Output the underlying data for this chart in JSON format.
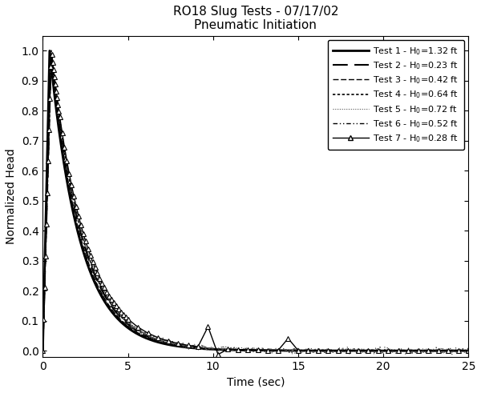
{
  "title_line1": "RO18 Slug Tests - 07/17/02",
  "title_line2": "Pneumatic Initiation",
  "xlabel": "Time (sec)",
  "ylabel": "Normalized Head",
  "xlim": [
    0,
    25
  ],
  "ylim": [
    -0.02,
    1.05
  ],
  "xticks": [
    0,
    5,
    10,
    15,
    20,
    25
  ],
  "yticks": [
    0.0,
    0.1,
    0.2,
    0.3,
    0.4,
    0.5,
    0.6,
    0.7,
    0.8,
    0.9,
    1.0
  ],
  "tests": [
    {
      "label": "Test 1 - H$_0$=1.32 ft",
      "lw": 2.0,
      "color": "#000000",
      "ls_key": "solid",
      "marker": null
    },
    {
      "label": "Test 2 - H$_0$=0.23 ft",
      "lw": 1.5,
      "color": "#000000",
      "ls_key": "long_dash",
      "marker": null
    },
    {
      "label": "Test 3 - H$_0$=0.42 ft",
      "lw": 1.0,
      "color": "#000000",
      "ls_key": "med_dash",
      "marker": null
    },
    {
      "label": "Test 4 - H$_0$=0.64 ft",
      "lw": 1.2,
      "color": "#000000",
      "ls_key": "short_dash",
      "marker": null
    },
    {
      "label": "Test 5 - H$_0$=0.72 ft",
      "lw": 0.8,
      "color": "#555555",
      "ls_key": "dotted",
      "marker": null
    },
    {
      "label": "Test 6 - H$_0$=0.52 ft",
      "lw": 1.0,
      "color": "#000000",
      "ls_key": "dashdotdot",
      "marker": null
    },
    {
      "label": "Test 7 - H$_0$=0.28 ft",
      "lw": 1.0,
      "color": "#000000",
      "ls_key": "solid",
      "marker": "^"
    }
  ],
  "figsize": [
    6.0,
    4.91
  ],
  "dpi": 100,
  "background_color": "#ffffff",
  "title_fontsize": 11,
  "label_fontsize": 10,
  "tick_fontsize": 10,
  "legend_fontsize": 8
}
